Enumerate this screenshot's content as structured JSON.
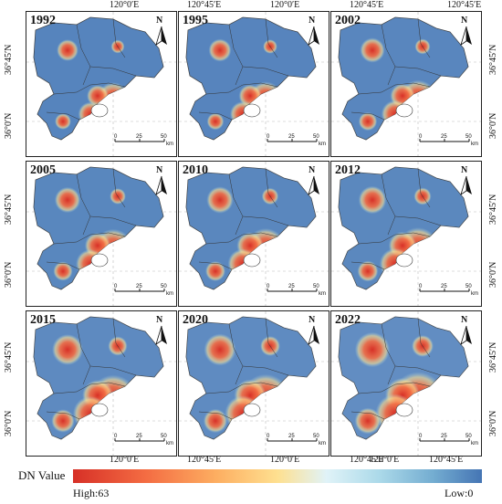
{
  "axes": {
    "top_lon_1": "120°0′E",
    "top_lon_2": "120°45′E",
    "bottom_lon_1": "120°0′E",
    "bottom_lon_2": "120°45′E",
    "lat_top": "36°45′N",
    "lat_bottom": "36°0′N"
  },
  "panels": [
    {
      "year": "1992",
      "intensity": 0.35
    },
    {
      "year": "1995",
      "intensity": 0.4
    },
    {
      "year": "2002",
      "intensity": 0.5
    },
    {
      "year": "2005",
      "intensity": 0.55
    },
    {
      "year": "2010",
      "intensity": 0.6
    },
    {
      "year": "2012",
      "intensity": 0.65
    },
    {
      "year": "2015",
      "intensity": 0.8
    },
    {
      "year": "2020",
      "intensity": 0.85
    },
    {
      "year": "2022",
      "intensity": 1.0
    }
  ],
  "north_arrow": "N",
  "scale_bar": {
    "ticks": [
      "0",
      "25",
      "50"
    ],
    "unit": "km"
  },
  "legend": {
    "title": "DN Value",
    "high": "High:63",
    "low": "Low:0",
    "colors": {
      "high": "#d73027",
      "mid": "#fee090",
      "low": "#4575b4"
    }
  }
}
